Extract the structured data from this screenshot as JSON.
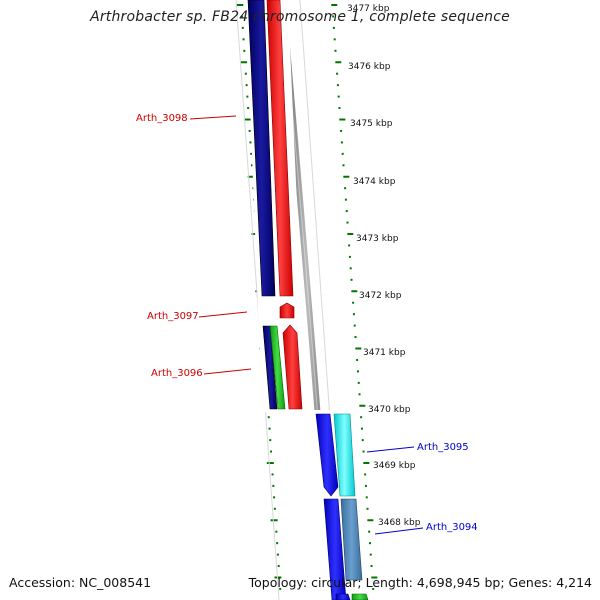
{
  "title": "Arthrobacter sp. FB24 chromosome 1, complete sequence",
  "accession": "Accession: NC_008541",
  "summary": "Topology: circular; Length: 4,698,945 bp; Genes: 4,214",
  "scale": {
    "unit": "kbp",
    "labels": [
      "3477 kbp",
      "3476 kbp",
      "3475 kbp",
      "3474 kbp",
      "3473 kbp",
      "3472 kbp",
      "3471 kbp",
      "3470 kbp",
      "3469 kbp",
      "3468 kbp"
    ]
  },
  "genes": [
    {
      "name": "Arth_3098",
      "strand": "left",
      "color": "#cc0000"
    },
    {
      "name": "Arth_3097",
      "strand": "left",
      "color": "#cc0000"
    },
    {
      "name": "Arth_3096",
      "strand": "left",
      "color": "#cc0000"
    },
    {
      "name": "Arth_3095",
      "strand": "right",
      "color": "#0000cc"
    },
    {
      "name": "Arth_3094",
      "strand": "right",
      "color": "#0000cc"
    }
  ],
  "colors": {
    "navy": "#000080",
    "red": "#ff0000",
    "blue": "#0000ee",
    "green": "#22bb22",
    "cyan": "#00e5ee",
    "steelblue": "#4682b4",
    "tick_green": "#007700",
    "backbone_gray": "#777777"
  }
}
